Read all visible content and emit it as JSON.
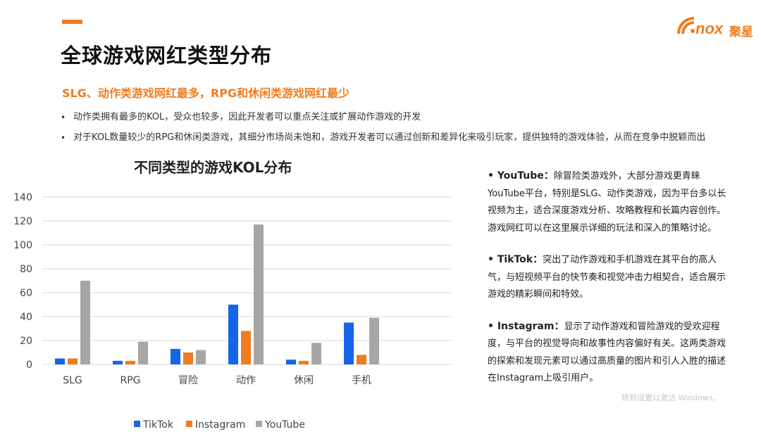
{
  "header": {
    "title": "全球游戏网红类型分布",
    "logo_text": "nox",
    "logo_cn": "聚星"
  },
  "subtitle": "SLG、动作类游戏网红最多，RPG和休闲类游戏网红最少",
  "bullets": [
    "动作类拥有最多的KOL，受众也较多，因此开发者可以重点关注或扩展动作游戏的开发",
    "对于KOL数量较少的RPG和休闲类游戏，其细分市场尚未饱和，游戏开发者可以通过创新和差异化来吸引玩家，提供独特的游戏体验，从而在竞争中脱颖而出"
  ],
  "platforms": [
    {
      "name": "YouTube",
      "text": "除冒险类游戏外，大部分游戏更青睐YouTube平台，特别是SLG、动作类游戏，因为平台多以长视频为主，适合深度游戏分析、攻略教程和长篇内容创作。游戏网红可以在这里展示详细的玩法和深入的策略讨论。"
    },
    {
      "name": "TikTok",
      "text": "突出了动作游戏和手机游戏在其平台的高人气，与短视频平台的快节奏和视觉冲击力相契合，适合展示游戏的精彩瞬间和特效。"
    },
    {
      "name": "Instagram",
      "text": "显示了动作游戏和冒险游戏的受欢迎程度，与平台的视觉导向和故事性内容偏好有关。这两类游戏的探索和发现元素可以通过高质量的图片和引人入胜的描述在Instagram上吸引用户。"
    }
  ],
  "watermark": "转到设置以激活 Windows。",
  "colors": {
    "accent": "#f07c1e",
    "tiktok": "#1565e8",
    "instagram": "#f07c1e",
    "youtube": "#a6a6a6"
  },
  "chart_data": {
    "type": "bar",
    "title": "不同类型的游戏KOL分布",
    "xlabel": "",
    "ylabel": "",
    "categories": [
      "SLG",
      "RPG",
      "冒险",
      "动作",
      "休闲",
      "手机"
    ],
    "series": [
      {
        "name": "TikTok",
        "values": [
          5,
          3,
          13,
          50,
          4,
          35
        ]
      },
      {
        "name": "Instagram",
        "values": [
          5,
          3,
          10,
          28,
          3,
          8
        ]
      },
      {
        "name": "YouTube",
        "values": [
          70,
          19,
          12,
          117,
          18,
          39
        ]
      }
    ],
    "ylim": [
      0,
      140
    ],
    "yticks": [
      0,
      20,
      40,
      60,
      80,
      100,
      120,
      140
    ],
    "grid": true,
    "legend": "bottom"
  }
}
